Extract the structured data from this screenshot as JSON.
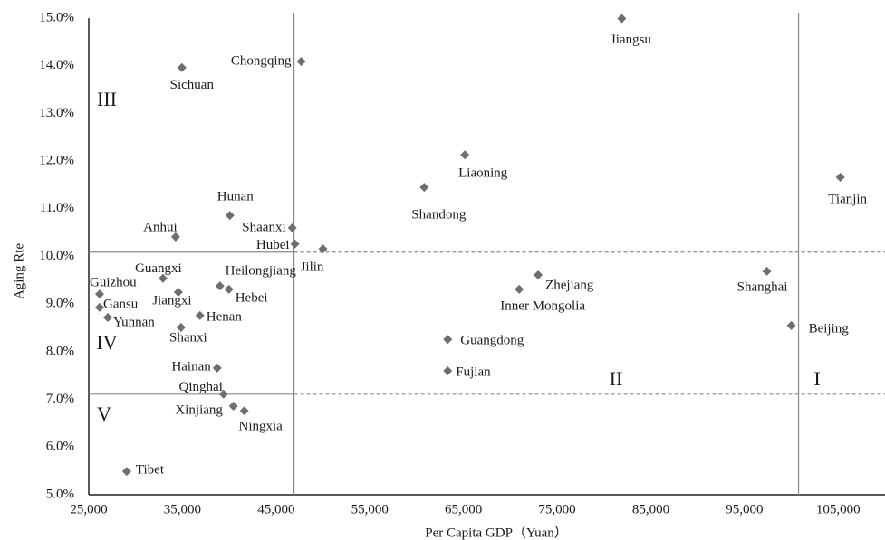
{
  "chart_data": {
    "type": "scatter",
    "x_label": "Per Capita GDP（Yuan）",
    "y_label": "Aging Rte",
    "color": "#6e6e6e",
    "xlim": [
      25000,
      110000
    ],
    "ylim": [
      5,
      15
    ],
    "xticks": [
      {
        "value": 25000,
        "label": "25,000"
      },
      {
        "value": 35000,
        "label": "35,000"
      },
      {
        "value": 45000,
        "label": "45,000"
      },
      {
        "value": 55000,
        "label": "55,000"
      },
      {
        "value": 65000,
        "label": "65,000"
      },
      {
        "value": 75000,
        "label": "75,000"
      },
      {
        "value": 85000,
        "label": "85,000"
      },
      {
        "value": 95000,
        "label": "95,000"
      },
      {
        "value": 105000,
        "label": "105,000"
      }
    ],
    "yticks": [
      {
        "value": 5,
        "label": "5.0%"
      },
      {
        "value": 6,
        "label": "6.0%"
      },
      {
        "value": 7,
        "label": "7.0%"
      },
      {
        "value": 8,
        "label": "8.0%"
      },
      {
        "value": 9,
        "label": "9.0%"
      },
      {
        "value": 10,
        "label": "10.0%"
      },
      {
        "value": 11,
        "label": "11.0%"
      },
      {
        "value": 12,
        "label": "12.0%"
      },
      {
        "value": 13,
        "label": "13.0%"
      },
      {
        "value": 14,
        "label": "14.0%"
      },
      {
        "value": 15,
        "label": "15.0%"
      }
    ],
    "names": [
      "Jiangsu",
      "Chongqing",
      "Sichuan",
      "Tianjin",
      "Liaoning",
      "Shandong",
      "Hunan",
      "Anhui",
      "Shaanxi",
      "Hubei",
      "Jilin",
      "Guangxi",
      "Heilongjiang",
      "Hebei",
      "Jiangxi",
      "Guizhou",
      "Gansu",
      "Yunnan",
      "Henan",
      "Shanxi",
      "Zhejiang",
      "Inner Mongolia",
      "Shanghai",
      "Beijing",
      "Guangdong",
      "Fujian",
      "Hainan",
      "Qinghai",
      "Xinjiang",
      "Ningxia",
      "Tibet"
    ],
    "x": [
      81900,
      47680,
      34940,
      105230,
      65150,
      60810,
      40060,
      34270,
      46720,
      47010,
      50000,
      32920,
      39000,
      39960,
      34560,
      26160,
      26160,
      27030,
      36870,
      34850,
      72970,
      70950,
      97390,
      100000,
      63320,
      63320,
      38710,
      39380,
      40440,
      41600,
      29050
    ],
    "values": [
      14.99,
      14.09,
      13.96,
      11.66,
      12.13,
      11.45,
      10.86,
      10.41,
      10.6,
      10.26,
      10.16,
      9.54,
      9.38,
      9.31,
      9.25,
      9.21,
      8.93,
      8.72,
      8.76,
      8.51,
      9.61,
      9.31,
      9.69,
      8.55,
      8.26,
      7.6,
      7.66,
      7.11,
      6.86,
      6.76,
      5.49
    ],
    "reference_lines": {
      "x": [
        46910,
        100770
      ],
      "y": [
        10.09,
        7.11
      ]
    },
    "region_labels": [
      "I",
      "II",
      "III",
      "IV",
      "V"
    ]
  }
}
